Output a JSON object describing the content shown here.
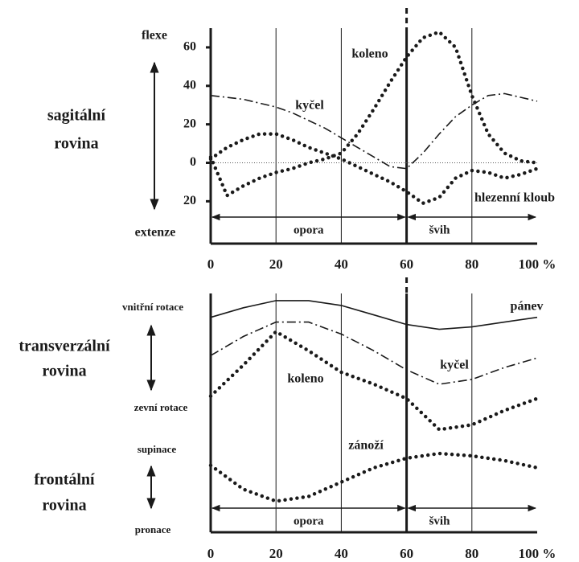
{
  "chart_data": [
    {
      "type": "line",
      "side_label": [
        "sagitální",
        "rovina"
      ],
      "axis_labels": [
        "flexe",
        "extenze"
      ],
      "x": [
        0,
        5,
        10,
        15,
        20,
        25,
        30,
        35,
        40,
        45,
        50,
        55,
        60,
        65,
        70,
        75,
        80,
        85,
        90,
        95,
        100
      ],
      "xlim": [
        0,
        100
      ],
      "xticks": [
        0,
        20,
        40,
        60,
        80,
        {
          "value": 100,
          "label": "100 %"
        }
      ],
      "ylim": [
        -42,
        70
      ],
      "yticks": [
        60,
        40,
        20,
        0,
        {
          "value": -20,
          "label": "20"
        }
      ],
      "phases": [
        {
          "label": "opora",
          "start": 0,
          "end": 60
        },
        {
          "label": "švih",
          "start": 60,
          "end": 100
        }
      ],
      "series": [
        {
          "name": "koleno",
          "style": "dotted",
          "color": "#1a1a1a",
          "values": [
            3,
            -17,
            -12,
            -8,
            -5,
            -3,
            0,
            2,
            5,
            15,
            28,
            42,
            55,
            65,
            68,
            60,
            35,
            15,
            5,
            1,
            0
          ]
        },
        {
          "name": "kyčel",
          "style": "dashdot",
          "color": "#1a1a1a",
          "values": [
            35,
            34,
            33,
            31,
            29,
            26,
            22,
            18,
            13,
            8,
            3,
            -2,
            -3,
            5,
            15,
            24,
            30,
            35,
            36,
            34,
            32
          ]
        },
        {
          "name": "hlezenní kloub",
          "style": "dotted",
          "color": "#1a1a1a",
          "values": [
            2,
            8,
            12,
            15,
            15,
            12,
            8,
            5,
            2,
            -2,
            -6,
            -10,
            -15,
            -21,
            -18,
            -8,
            -4,
            -5,
            -8,
            -6,
            -3
          ]
        }
      ]
    },
    {
      "type": "line",
      "side_labels": [
        [
          "transverzální",
          "rovina"
        ],
        [
          "frontální",
          "rovina"
        ]
      ],
      "axis_labels": [
        "vnitřní rotace",
        "zevní rotace",
        "supinace",
        "pronace"
      ],
      "x": [
        0,
        10,
        20,
        30,
        40,
        50,
        60,
        70,
        80,
        90,
        100
      ],
      "xlim": [
        0,
        100
      ],
      "xticks": [
        0,
        20,
        40,
        60,
        80,
        {
          "value": 100,
          "label": "100 %"
        }
      ],
      "ylim": [
        0,
        100
      ],
      "phases": [
        {
          "label": "opora",
          "start": 0,
          "end": 60
        },
        {
          "label": "švih",
          "start": 60,
          "end": 100
        }
      ],
      "series": [
        {
          "name": "pánev",
          "style": "solid",
          "color": "#1a1a1a",
          "values": [
            90,
            94,
            97,
            97,
            95,
            91,
            87,
            85,
            86,
            88,
            90
          ]
        },
        {
          "name": "kyčel",
          "style": "dashdot",
          "color": "#1a1a1a",
          "values": [
            74,
            82,
            88,
            88,
            83,
            76,
            68,
            62,
            64,
            69,
            73
          ]
        },
        {
          "name": "koleno",
          "style": "dotted",
          "color": "#1a1a1a",
          "values": [
            57,
            70,
            84,
            76,
            67,
            62,
            56,
            43,
            45,
            51,
            56
          ]
        },
        {
          "name": "zánoží",
          "style": "dotted",
          "color": "#1a1a1a",
          "values": [
            28,
            18,
            13,
            15,
            21,
            27,
            31,
            33,
            32,
            30,
            27
          ]
        }
      ]
    }
  ]
}
